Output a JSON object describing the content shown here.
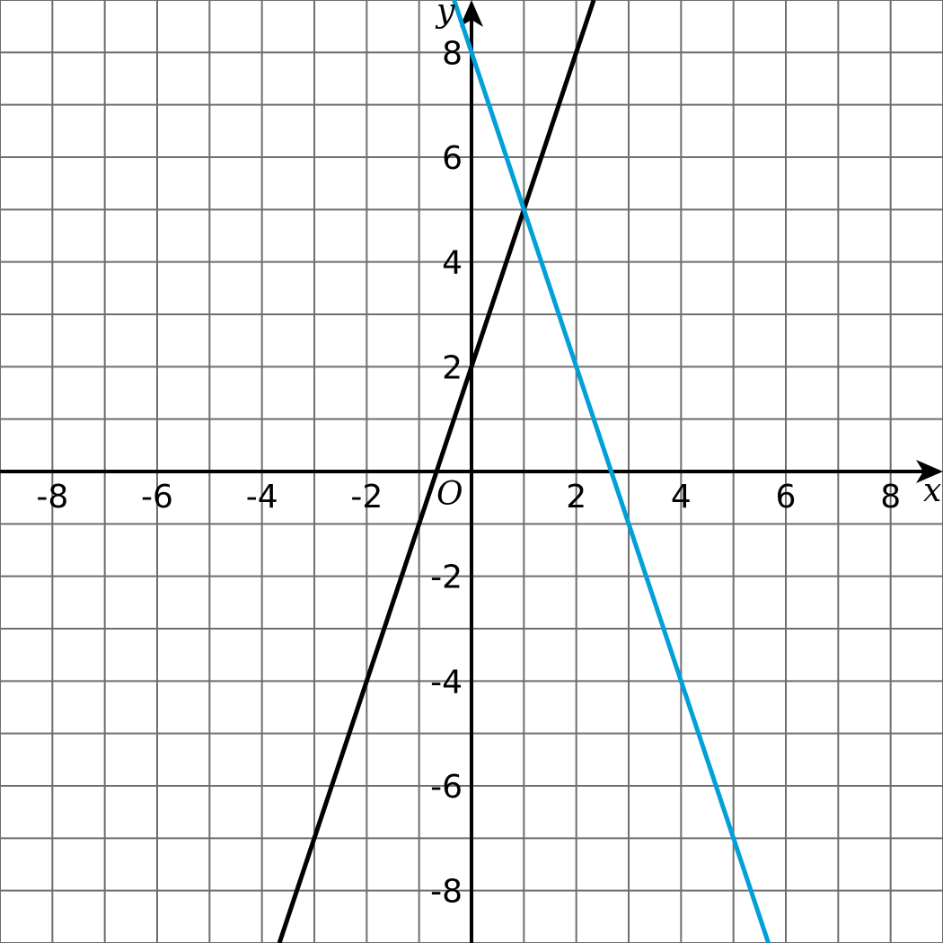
{
  "chart_data": {
    "type": "line",
    "title": "",
    "xlabel": "x",
    "ylabel": "y",
    "origin_label": "O",
    "xlim": [
      -9,
      9
    ],
    "ylim": [
      -9,
      9
    ],
    "grid": true,
    "x_ticks": [
      -8,
      -6,
      -4,
      -2,
      2,
      4,
      6,
      8
    ],
    "y_ticks": [
      -8,
      -6,
      -4,
      -2,
      2,
      4,
      6,
      8
    ],
    "series": [
      {
        "color": "#000000",
        "equation": {
          "slope": 3,
          "intercept": 2
        },
        "points": [
          [
            -3.667,
            -9
          ],
          [
            2.333,
            9
          ]
        ]
      },
      {
        "color": "#00a0d8",
        "equation": {
          "slope": -3,
          "intercept": 8
        },
        "points": [
          [
            -0.333,
            9
          ],
          [
            5.667,
            -9
          ]
        ]
      }
    ],
    "colors": {
      "grid": "#6e6e6e",
      "axes": "#000000"
    }
  }
}
